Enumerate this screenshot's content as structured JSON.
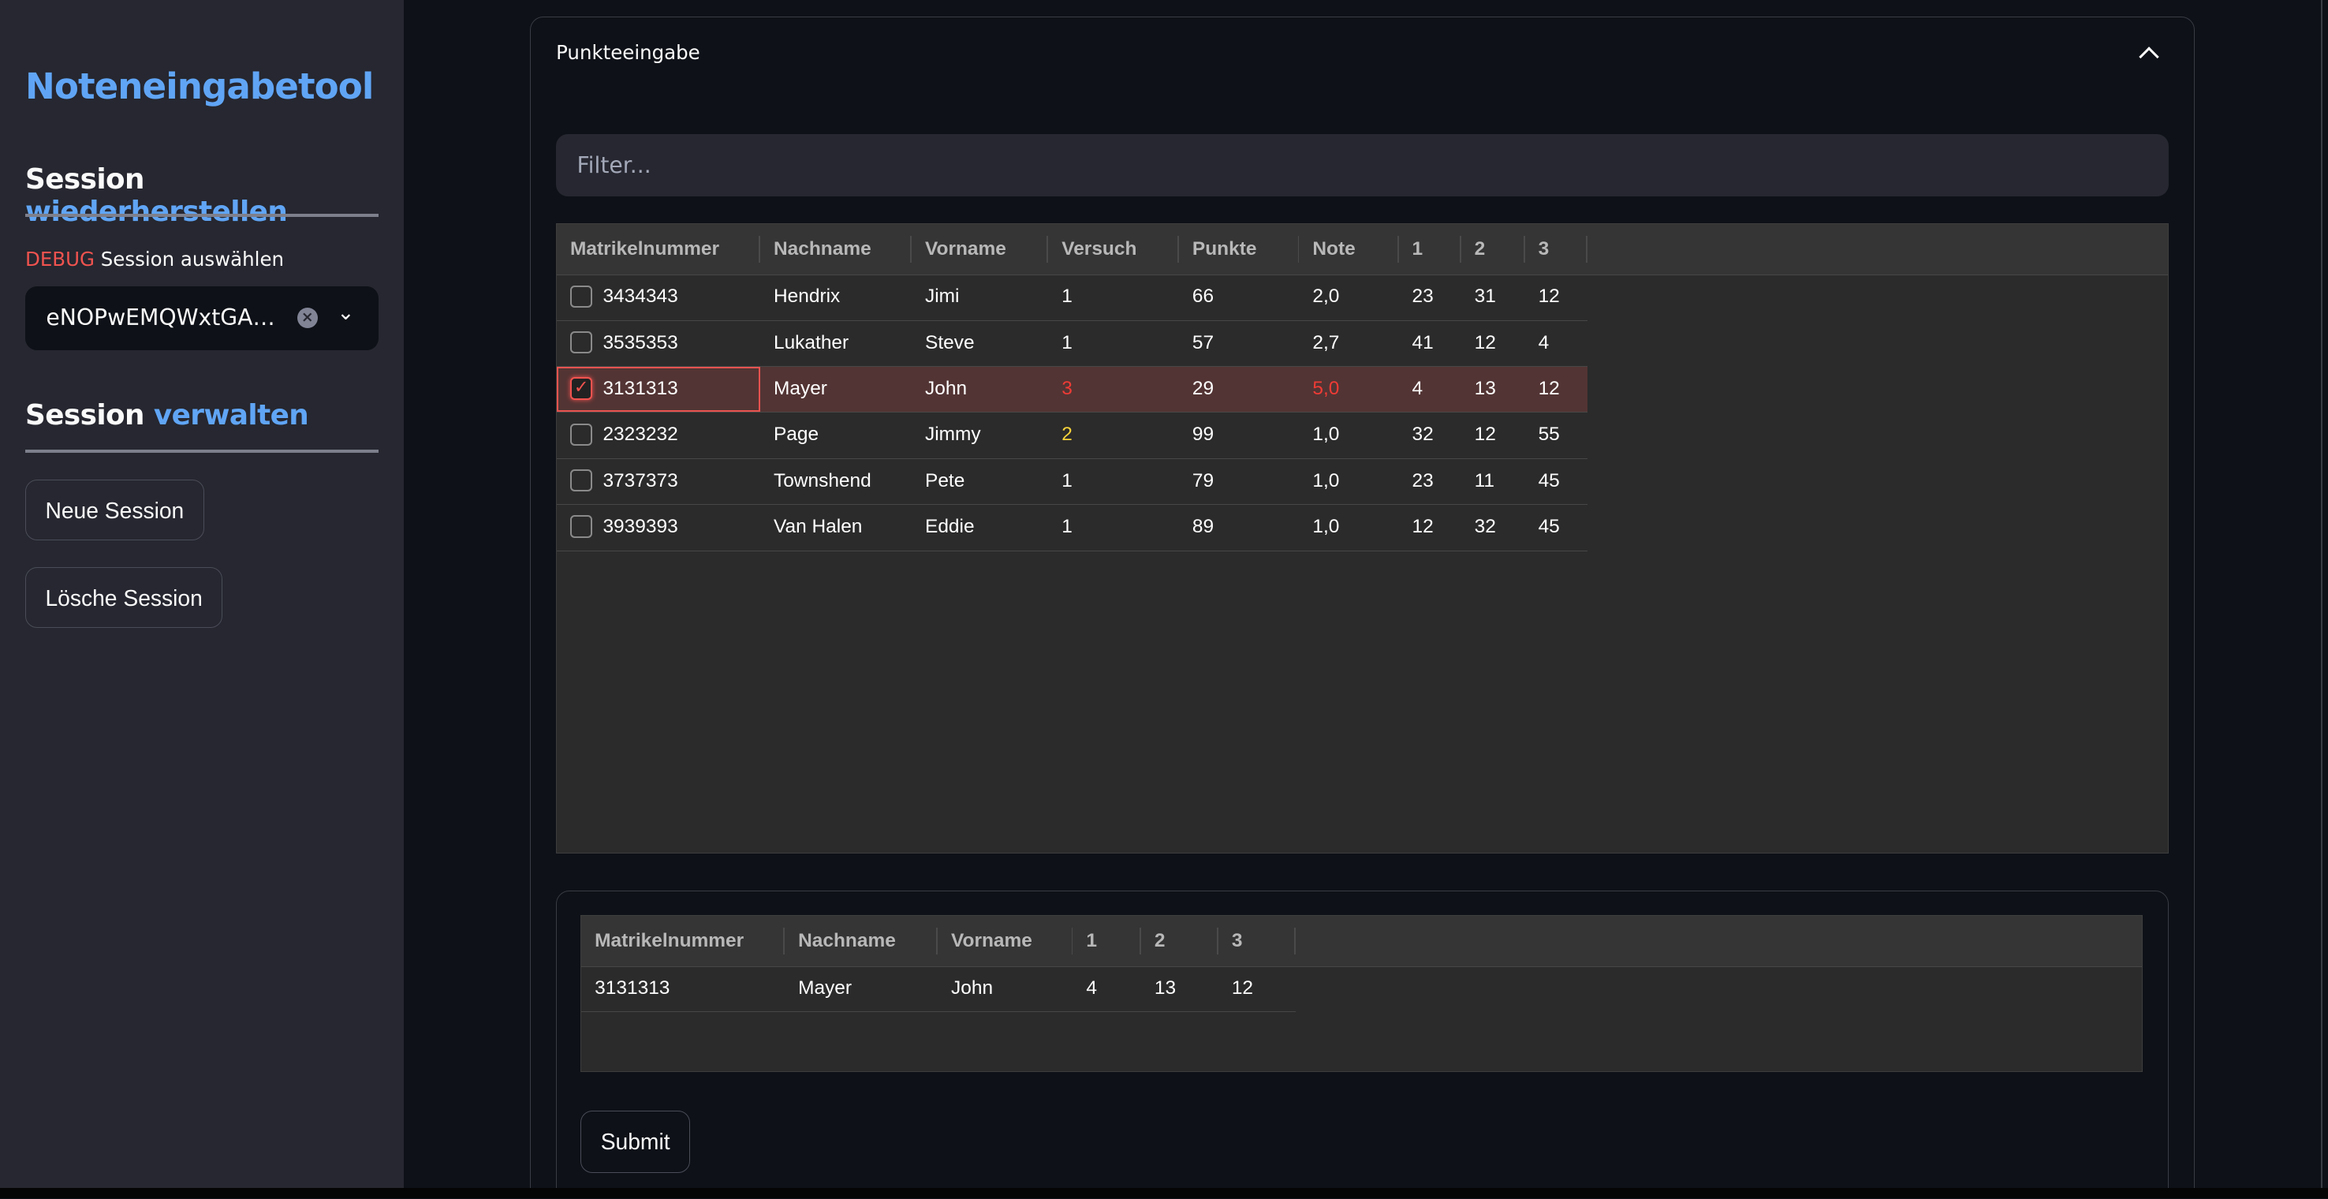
{
  "sidebar": {
    "app_title": "Noteneingabetool",
    "restore_heading": {
      "part1": "Session",
      "part2": "wiederherstellen"
    },
    "select_label": {
      "debug": "DEBUG",
      "text": "Session auswählen"
    },
    "select_value": "eNOPwEMQWxtGA…",
    "manage_heading": {
      "part1": "Session",
      "part2": "verwalten"
    },
    "new_session": "Neue Session",
    "delete_session": "Lösche Session"
  },
  "expander": {
    "title": "Punkteeingabe",
    "filter_placeholder": "Filter...",
    "table": {
      "columns": [
        "Matrikelnummer",
        "Nachname",
        "Vorname",
        "Versuch",
        "Punkte",
        "Note",
        "1",
        "2",
        "3"
      ],
      "rows": [
        [
          "3434343",
          "Hendrix",
          "Jimi",
          "1",
          "66",
          "2,0",
          "23",
          "31",
          "12"
        ],
        [
          "3535353",
          "Lukather",
          "Steve",
          "1",
          "57",
          "2,7",
          "41",
          "12",
          "4"
        ],
        [
          "3131313",
          "Mayer",
          "John",
          "3",
          "29",
          "5,0",
          "4",
          "13",
          "12"
        ],
        [
          "2323232",
          "Page",
          "Jimmy",
          "2",
          "99",
          "1,0",
          "32",
          "12",
          "55"
        ],
        [
          "3737373",
          "Townshend",
          "Pete",
          "1",
          "79",
          "1,0",
          "23",
          "11",
          "45"
        ],
        [
          "3939393",
          "Van Halen",
          "Eddie",
          "1",
          "89",
          "1,0",
          "12",
          "32",
          "45"
        ]
      ],
      "selected_row": 2
    },
    "selection_table": {
      "columns": [
        "Matrikelnummer",
        "Nachname",
        "Vorname",
        "1",
        "2",
        "3"
      ],
      "rows": [
        [
          "3131313",
          "Mayer",
          "John",
          "4",
          "13",
          "12"
        ]
      ]
    },
    "submit": "Submit"
  },
  "colors": {
    "accent": "#60a5f5",
    "danger": "#ef3b35",
    "warning": "#f5d23a",
    "sidebar_bg": "#262730",
    "main_bg": "#0e1117"
  }
}
